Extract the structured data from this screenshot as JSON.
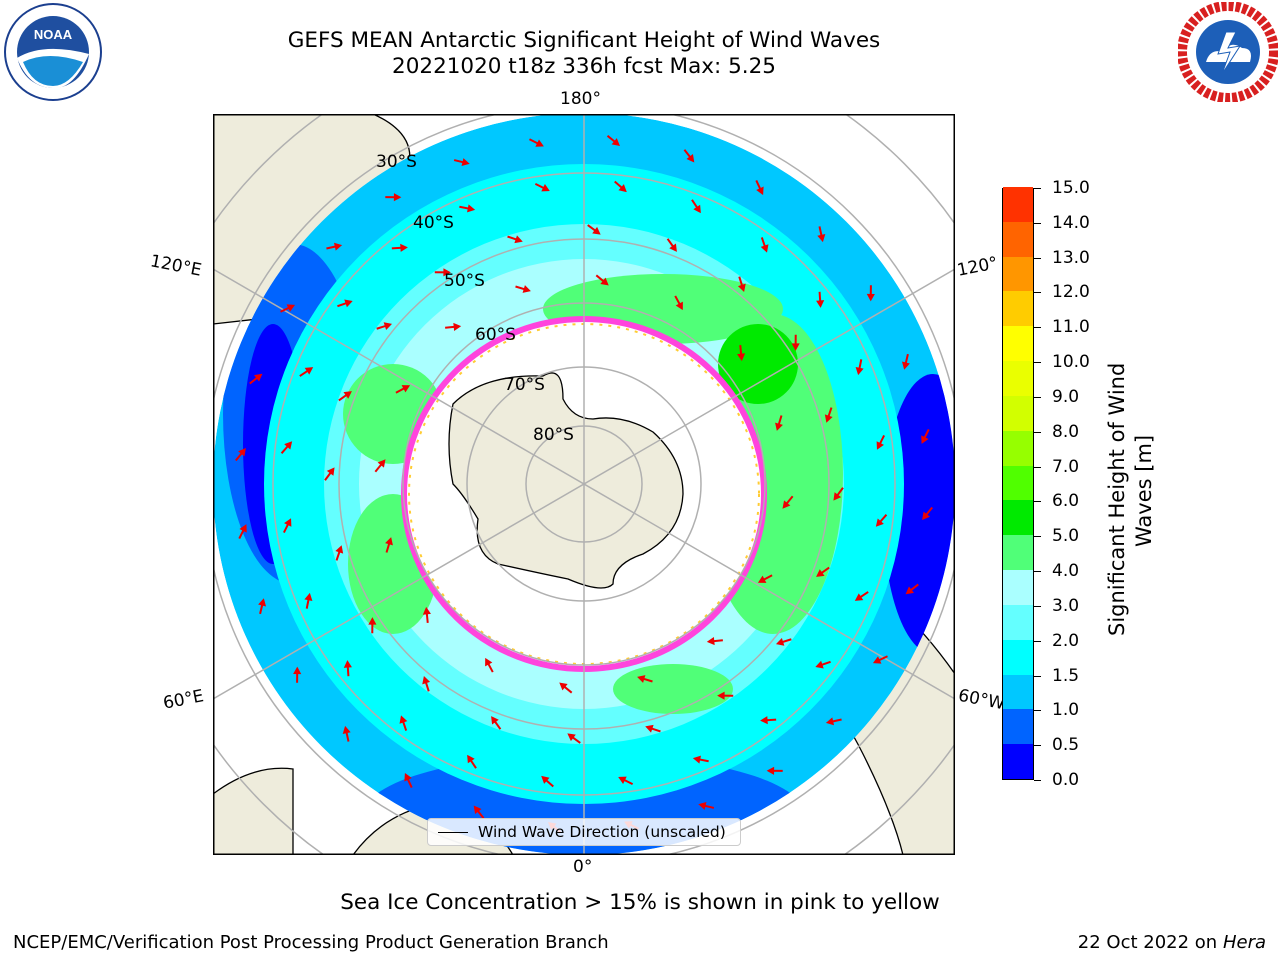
{
  "title": {
    "line1": "GEFS MEAN Antarctic Significant Height of Wind Waves",
    "line2": "20221020 t18z 336h fcst   Max: 5.25"
  },
  "map": {
    "longitude_labels": {
      "top": "180°",
      "bottom": "0°",
      "upper_left": "120°E",
      "upper_right": "120°",
      "lower_left": "60°E",
      "lower_right": "60°W"
    },
    "latitude_labels": [
      "30°S",
      "40°S",
      "50°S",
      "60°S",
      "70°S",
      "80°S"
    ],
    "colors": {
      "land": "#eeecdc",
      "ice_free_ocean_under_ice": "#ffffff",
      "ice_edge": "#ff44dd",
      "arrows": "#ee0000",
      "gridlines": "#b0b0b0"
    },
    "legend_label": "Wind Wave Direction (unscaled)"
  },
  "colorbar": {
    "title_line1": "Significant Height of Wind",
    "title_line2": "Waves [m]",
    "ticks": [
      "0.0",
      "0.5",
      "1.0",
      "1.5",
      "2.0",
      "3.0",
      "4.0",
      "5.0",
      "6.0",
      "7.0",
      "8.0",
      "9.0",
      "10.0",
      "11.0",
      "12.0",
      "13.0",
      "14.0",
      "15.0"
    ],
    "colors": [
      "#0000ff",
      "#0064ff",
      "#00c8ff",
      "#00ffff",
      "#64ffff",
      "#aaffff",
      "#50ff78",
      "#00ea00",
      "#50ff00",
      "#96ff00",
      "#d2ff00",
      "#eaff00",
      "#ffff00",
      "#ffcc00",
      "#ff9600",
      "#ff6400",
      "#ff3200",
      "#ff0000"
    ]
  },
  "note": "Sea Ice Concentration > 15% is shown in pink to yellow",
  "footer": {
    "left": "NCEP/EMC/Verification Post Processing Product Generation Branch",
    "right_prefix": "22 Oct 2022 on ",
    "right_system": "Hera"
  },
  "logos": {
    "left": "NOAA",
    "right": "NATIONAL WEATHER SERVICE"
  }
}
